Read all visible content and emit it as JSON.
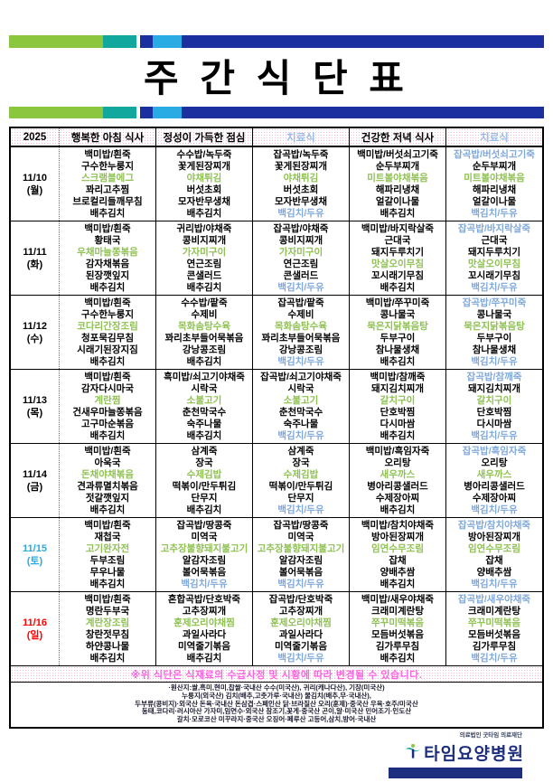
{
  "title": "주 간 식 단 표",
  "year": "2025",
  "header": {
    "columns": [
      {
        "label": "행복한 아침 식사",
        "color": "k"
      },
      {
        "label": "정성이 가득한 점심",
        "color": "k"
      },
      {
        "label": "치료식",
        "color": "b"
      },
      {
        "label": "건강한 저녁 식사",
        "color": "k"
      },
      {
        "label": "치료식",
        "color": "b"
      }
    ]
  },
  "days": [
    {
      "date": "11/10",
      "weekday": "(월)",
      "color": "k",
      "cells": [
        [
          "백미밥/흰죽",
          "구수한누룽지",
          [
            "스크램블에그",
            "g"
          ],
          "꽈리고추찜",
          "브로컬리들깨무침",
          "배추김치"
        ],
        [
          "수수밥/녹두죽",
          "꽃게된장찌개",
          [
            "야채튀김",
            "g"
          ],
          "버섯초회",
          "모자반무생채",
          "배추김치"
        ],
        [
          "잡곡밥/녹두죽",
          "꽃게된장찌개",
          [
            "야채튀김",
            "g"
          ],
          "버섯초회",
          "모자반무생채",
          [
            "백김치/두유",
            "b"
          ]
        ],
        [
          "백미밥/버섯쇠고기죽",
          "순두부찌개",
          [
            "미트볼야채볶음",
            "g"
          ],
          "해파리냉채",
          "얼갈이나물",
          "배추김치"
        ],
        [
          [
            "잡곡밥/버섯쇠고기죽",
            "b"
          ],
          "순두부찌개",
          [
            "미트볼야채볶음",
            "g"
          ],
          "해파리냉채",
          "얼갈이나물",
          [
            "백김치/두유",
            "b"
          ]
        ]
      ]
    },
    {
      "date": "11/11",
      "weekday": "(화)",
      "color": "k",
      "cells": [
        [
          "백미밥/흰죽",
          "황태국",
          [
            "우채마늘쫑볶음",
            "g"
          ],
          "감자채볶음",
          "된장깻잎지",
          "배추김치"
        ],
        [
          "귀리밥/야채죽",
          "콩비지찌개",
          [
            "가자미구이",
            "g"
          ],
          "연근조림",
          "콘샐러드",
          "배추김치"
        ],
        [
          "잡곡밥/야채죽",
          "콩비지찌개",
          [
            "가자미구이",
            "g"
          ],
          "연근조림",
          "콘샐러드",
          [
            "백김치/두유",
            "b"
          ]
        ],
        [
          "백미밥/바지락살죽",
          "근대국",
          "돼지두루치기",
          [
            "맛살오이무침",
            "g"
          ],
          "꼬시래기무침",
          "배추김치"
        ],
        [
          [
            "잡곡밥/바지락살죽",
            "b"
          ],
          "근대국",
          "돼지두루치기",
          [
            "맛살오이무침",
            "g"
          ],
          "꼬시래기무침",
          [
            "백김치/두유",
            "b"
          ]
        ]
      ]
    },
    {
      "date": "11/12",
      "weekday": "(수)",
      "color": "k",
      "cells": [
        [
          "백미밥/흰죽",
          "구수한누룽지",
          [
            "코다리간장조림",
            "g"
          ],
          "청포묵김무침",
          "시래기된장지짐",
          "배추김치"
        ],
        [
          "수수밥/팥죽",
          "수제비",
          [
            "목화솜탕수육",
            "g"
          ],
          "꽈리초부들어묵볶음",
          "강낭콩조림",
          "배추김치"
        ],
        [
          "잡곡밥/팥죽",
          "수제비",
          [
            "목화솜탕수육",
            "g"
          ],
          "꽈리초부들어묵볶음",
          "강낭콩조림",
          [
            "백김치/두유",
            "b"
          ]
        ],
        [
          "백미밥/쭈꾸미죽",
          "콩나물국",
          [
            "묵은지닭볶음탕",
            "g"
          ],
          "두부구이",
          "참나물생채",
          "배추김치"
        ],
        [
          [
            "잡곡밥/쭈꾸미죽",
            "b"
          ],
          "콩나물국",
          [
            "묵은지닭볶음탕",
            "g"
          ],
          "두부구이",
          "참나물생채",
          [
            "백김치/두유",
            "b"
          ]
        ]
      ]
    },
    {
      "date": "11/13",
      "weekday": "(목)",
      "color": "k",
      "cells": [
        [
          "백미밥/흰죽",
          "감자다시마국",
          [
            "계란찜",
            "g"
          ],
          "건새우마늘쫑볶음",
          "고구마순볶음",
          "배추김치"
        ],
        [
          "흑미밥/쇠고기야채죽",
          "시락국",
          [
            "소불고기",
            "g"
          ],
          "춘천막국수",
          "숙주나물",
          "배추김치"
        ],
        [
          "잡곡밥/쇠고기야채죽",
          "시락국",
          [
            "소불고기",
            "g"
          ],
          "춘천막국수",
          "숙주나물",
          [
            "백김치/두유",
            "b"
          ]
        ],
        [
          "백미밥/참깨죽",
          "돼지김치찌개",
          [
            "갈치구이",
            "g"
          ],
          "단호박찜",
          "다시마쌈",
          "배추김치"
        ],
        [
          [
            "잡곡밥/참깨죽",
            "b"
          ],
          "돼지김치찌개",
          [
            "갈치구이",
            "g"
          ],
          "단호박찜",
          "다시마쌈",
          [
            "백김치/두유",
            "b"
          ]
        ]
      ]
    },
    {
      "date": "11/14",
      "weekday": "(금)",
      "color": "k",
      "cells": [
        [
          "백미밥/흰죽",
          "아욱국",
          [
            "돈채야채볶음",
            "g"
          ],
          "견과류멸치볶음",
          "젓갈깻잎지",
          "배추김치"
        ],
        [
          "삼계죽",
          "장국",
          [
            "수제김밥",
            "g"
          ],
          "떡볶이/만두튀김",
          "단무지",
          "배추김치"
        ],
        [
          "삼계죽",
          "장국",
          [
            "수제김밥",
            "g"
          ],
          "떡볶이/만두튀김",
          "단무지",
          [
            "백김치/두유",
            "b"
          ]
        ],
        [
          "백미밥/흑임자죽",
          "오리탕",
          [
            "새우까스",
            "g"
          ],
          "병아리콩샐러드",
          "수제장아찌",
          "배추김치"
        ],
        [
          [
            "잡곡밥/흑임자죽",
            "b"
          ],
          "오리탕",
          [
            "새우까스",
            "g"
          ],
          "병아리콩샐러드",
          "수제장아찌",
          [
            "백김치/두유",
            "b"
          ]
        ]
      ]
    },
    {
      "date": "11/15",
      "weekday": "(토)",
      "color": "b",
      "cells": [
        [
          "백미밥/흰죽",
          "재첩국",
          [
            "고기완자전",
            "g"
          ],
          "두부조림",
          "무우나물",
          "배추김치"
        ],
        [
          "잡곡밥/땅콩죽",
          "미역국",
          [
            "고추장불향돼지불고기",
            "g"
          ],
          "알감자조림",
          "볼어묵볶음",
          [
            "백김치/두유",
            "b"
          ]
        ],
        [
          "잡곡밥/땅콩죽",
          "미역국",
          [
            "고추장불향돼지불고기",
            "g"
          ],
          "알감자조림",
          "볼어묵볶음",
          [
            "백김치/두유",
            "b"
          ]
        ],
        [
          "백미밥/참치야채죽",
          "방아된장찌개",
          [
            "임연수무조림",
            "g"
          ],
          "잡채",
          "양배추쌈",
          "배추김치"
        ],
        [
          [
            "잡곡밥/참치야채죽",
            "b"
          ],
          "방아된장찌개",
          [
            "임연수무조림",
            "g"
          ],
          "잡채",
          "양배추쌈",
          [
            "백김치/두유",
            "b"
          ]
        ]
      ]
    },
    {
      "date": "11/16",
      "weekday": "(일)",
      "color": "r",
      "cells": [
        [
          "백미밥/흰죽",
          "명란두부국",
          [
            "계란장조림",
            "g"
          ],
          "창란젓무침",
          "하얀콩나물",
          "배추김치"
        ],
        [
          "혼합곡밥/단호박죽",
          "고추장찌개",
          [
            "훈제오리야채찜",
            "g"
          ],
          "과일사라다",
          "미역줄기볶음",
          "배추김치"
        ],
        [
          "잡곡밥/단호박죽",
          "고추장찌개",
          [
            "훈제오리야채찜",
            "g"
          ],
          "과일사라다",
          "미역줄기볶음",
          [
            "백김치/두유",
            "b"
          ]
        ],
        [
          "백미밥/새우야채죽",
          "크래미계란탕",
          [
            "쭈꾸미떡볶음",
            "g"
          ],
          "모듬버섯볶음",
          "김가루무침",
          "배추김치"
        ],
        [
          [
            "잡곡밥/새우야채죽",
            "b"
          ],
          "크래미계란탕",
          [
            "쭈꾸미떡볶음",
            "g"
          ],
          "모듬버섯볶음",
          "김가루무침",
          [
            "백김치/두유",
            "b"
          ]
        ]
      ]
    }
  ],
  "notice": "※위 식단은 식재료의 수급사정 및 시황에 따라 변경될 수 있습니다.",
  "origin_lines": [
    "·원산지:쌀,흑미,현미,찹쌀·국내산 수수(미국산), 귀리(캐나다산), 기장(미국산)",
    "누룽지(외국산) 김치(배추,고춧가루·국내산) 물김치(배추,무·국내산),",
    "두부류(콩비지)·외국산 돈육·국내산 돈삼겹·스페인산 닭·브라질산 오리(훈제)·중국산 우육·호주/미국산",
    "동태,코다리·러시아산 가자미,임연수·외국산 참조기,꽃게·중국산 곤이,알·미국산 민어조기·인도산",
    "갈치·모로코산 미꾸라지·중국산 오징어·페루산 고등어,삼치,방어·국내산"
  ],
  "footer": {
    "foundation": "의료법인 굿타임 의료재단",
    "hospital": "타임요양병원"
  },
  "colors": {
    "c-green": "#8fc152",
    "c-blue": "#7fa8dc",
    "c-headblue": "#9bbce8",
    "c-dateblue": "#2ba9e1",
    "c-red": "#ff0000",
    "c-magenta": "#fa64e0",
    "bar-green": "#8cc63f",
    "bar-teal": "#12a89d",
    "bar-navy": "#1b2f9e",
    "bar-lightblue": "#2aabe4",
    "navy-logo": "#1e2e7e"
  }
}
